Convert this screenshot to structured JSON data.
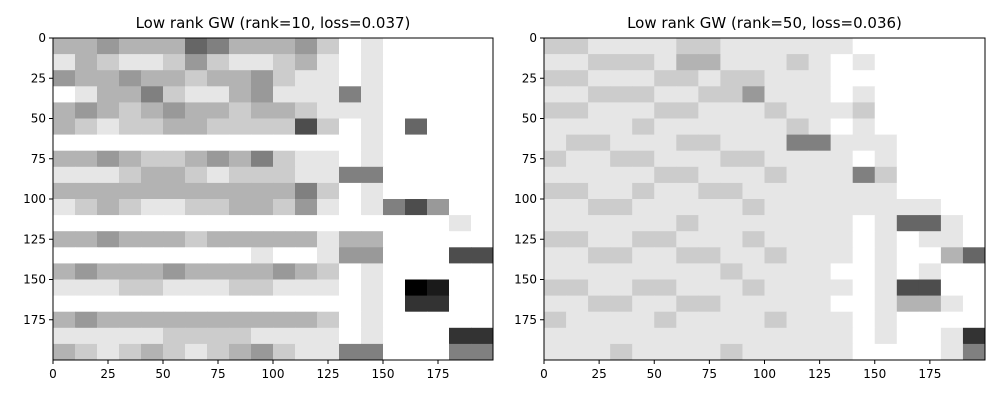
{
  "chart_data": [
    {
      "type": "heatmap",
      "title": "Low rank GW (rank=10, loss=0.037)",
      "xlim": [
        0,
        200
      ],
      "ylim": [
        200,
        0
      ],
      "xticks": [
        0,
        25,
        50,
        75,
        100,
        125,
        150,
        175
      ],
      "yticks": [
        0,
        25,
        50,
        75,
        100,
        125,
        150,
        175
      ],
      "color": "#000000",
      "values": [
        [
          0.3,
          0.3,
          0.4,
          0.3,
          0.3,
          0.3,
          0.6,
          0.5,
          0.3,
          0.3,
          0.3,
          0.4,
          0.2,
          0,
          0.1,
          0,
          0,
          0,
          0,
          0
        ],
        [
          0.1,
          0.3,
          0.2,
          0.1,
          0.1,
          0.2,
          0.4,
          0.2,
          0.1,
          0.1,
          0.2,
          0.3,
          0.1,
          0,
          0.1,
          0,
          0,
          0,
          0,
          0
        ],
        [
          0.4,
          0.3,
          0.3,
          0.4,
          0.3,
          0.3,
          0.2,
          0.3,
          0.3,
          0.4,
          0.2,
          0.1,
          0.1,
          0,
          0.1,
          0,
          0,
          0,
          0,
          0
        ],
        [
          0,
          0.1,
          0.3,
          0.3,
          0.5,
          0.2,
          0.1,
          0.1,
          0.3,
          0.4,
          0.1,
          0.1,
          0.1,
          0.5,
          0.1,
          0,
          0,
          0,
          0,
          0
        ],
        [
          0.3,
          0.4,
          0.3,
          0.2,
          0.3,
          0.4,
          0.3,
          0.3,
          0.2,
          0.3,
          0.3,
          0.2,
          0.1,
          0.1,
          0.1,
          0,
          0,
          0,
          0,
          0
        ],
        [
          0.3,
          0.2,
          0.1,
          0.2,
          0.2,
          0.3,
          0.3,
          0.2,
          0.2,
          0.2,
          0.2,
          0.7,
          0.2,
          0,
          0.1,
          0,
          0.6,
          0,
          0,
          0
        ],
        [
          0,
          0,
          0,
          0,
          0,
          0,
          0,
          0,
          0,
          0,
          0,
          0,
          0,
          0,
          0.1,
          0,
          0,
          0,
          0,
          0
        ],
        [
          0.3,
          0.3,
          0.4,
          0.3,
          0.2,
          0.2,
          0.3,
          0.4,
          0.3,
          0.5,
          0.2,
          0.1,
          0.1,
          0,
          0.1,
          0,
          0,
          0,
          0,
          0
        ],
        [
          0.1,
          0.1,
          0.1,
          0.2,
          0.3,
          0.3,
          0.2,
          0.1,
          0.2,
          0.2,
          0.2,
          0.1,
          0.1,
          0.5,
          0.5,
          0,
          0,
          0,
          0,
          0
        ],
        [
          0.3,
          0.3,
          0.3,
          0.3,
          0.3,
          0.3,
          0.3,
          0.3,
          0.3,
          0.3,
          0.3,
          0.5,
          0.2,
          0,
          0.1,
          0,
          0,
          0,
          0,
          0
        ],
        [
          0.1,
          0.2,
          0.3,
          0.2,
          0.1,
          0.1,
          0.2,
          0.2,
          0.3,
          0.3,
          0.2,
          0.4,
          0.1,
          0,
          0.1,
          0.5,
          0.7,
          0.4,
          0,
          0
        ],
        [
          0,
          0,
          0,
          0,
          0,
          0,
          0,
          0,
          0,
          0,
          0,
          0,
          0,
          0,
          0,
          0,
          0,
          0,
          0.1,
          0
        ],
        [
          0.3,
          0.3,
          0.4,
          0.3,
          0.3,
          0.3,
          0.2,
          0.3,
          0.3,
          0.3,
          0.3,
          0.3,
          0.1,
          0.3,
          0.3,
          0,
          0,
          0,
          0,
          0
        ],
        [
          0,
          0,
          0,
          0,
          0,
          0,
          0,
          0,
          0,
          0.1,
          0,
          0,
          0.1,
          0.4,
          0.4,
          0,
          0,
          0,
          0.7,
          0.7
        ],
        [
          0.3,
          0.4,
          0.3,
          0.3,
          0.3,
          0.4,
          0.3,
          0.3,
          0.3,
          0.3,
          0.4,
          0.3,
          0.2,
          0,
          0.1,
          0,
          0,
          0,
          0,
          0
        ],
        [
          0.1,
          0.1,
          0.1,
          0.2,
          0.2,
          0.1,
          0.1,
          0.1,
          0.2,
          0.2,
          0.1,
          0.1,
          0.1,
          0,
          0.1,
          0,
          1,
          0.9,
          0,
          0
        ],
        [
          0,
          0,
          0,
          0,
          0,
          0,
          0,
          0,
          0,
          0,
          0,
          0,
          0,
          0,
          0.1,
          0,
          0.8,
          0.8,
          0,
          0
        ],
        [
          0.3,
          0.4,
          0.3,
          0.3,
          0.3,
          0.3,
          0.3,
          0.3,
          0.3,
          0.3,
          0.3,
          0.3,
          0.2,
          0,
          0.1,
          0,
          0,
          0,
          0,
          0
        ],
        [
          0.1,
          0.1,
          0.1,
          0.1,
          0.1,
          0.2,
          0.2,
          0.2,
          0.2,
          0.1,
          0.1,
          0.1,
          0.1,
          0,
          0.1,
          0,
          0,
          0,
          0.8,
          0.8
        ],
        [
          0.3,
          0.2,
          0.1,
          0.2,
          0.3,
          0.2,
          0.1,
          0.2,
          0.3,
          0.4,
          0.2,
          0.1,
          0.1,
          0.5,
          0.5,
          0,
          0,
          0,
          0.5,
          0.5
        ]
      ]
    },
    {
      "type": "heatmap",
      "title": "Low rank GW (rank=50, loss=0.036)",
      "xlim": [
        0,
        200
      ],
      "ylim": [
        200,
        0
      ],
      "xticks": [
        0,
        25,
        50,
        75,
        100,
        125,
        150,
        175
      ],
      "yticks": [
        0,
        25,
        50,
        75,
        100,
        125,
        150,
        175
      ],
      "color": "#000000",
      "values": [
        [
          0.2,
          0.2,
          0.1,
          0.1,
          0.1,
          0.1,
          0.2,
          0.2,
          0.1,
          0.1,
          0.1,
          0.1,
          0.1,
          0.1,
          0,
          0,
          0,
          0,
          0,
          0
        ],
        [
          0.1,
          0.1,
          0.2,
          0.2,
          0.2,
          0.1,
          0.3,
          0.3,
          0.1,
          0.1,
          0.1,
          0.2,
          0.1,
          0,
          0.1,
          0,
          0,
          0,
          0,
          0
        ],
        [
          0.2,
          0.2,
          0.1,
          0.1,
          0.1,
          0.2,
          0.2,
          0.1,
          0.2,
          0.2,
          0.1,
          0.1,
          0.1,
          0,
          0,
          0,
          0,
          0,
          0,
          0
        ],
        [
          0.1,
          0.1,
          0.2,
          0.2,
          0.2,
          0.1,
          0.1,
          0.2,
          0.2,
          0.4,
          0.1,
          0.1,
          0.1,
          0,
          0.1,
          0,
          0,
          0,
          0,
          0
        ],
        [
          0.2,
          0.2,
          0.1,
          0.1,
          0.1,
          0.2,
          0.2,
          0.1,
          0.1,
          0.1,
          0.2,
          0.1,
          0.1,
          0.1,
          0.2,
          0,
          0,
          0,
          0,
          0
        ],
        [
          0.1,
          0.1,
          0.1,
          0.1,
          0.2,
          0.1,
          0.1,
          0.1,
          0.1,
          0.1,
          0.1,
          0.2,
          0.1,
          0,
          0.1,
          0,
          0,
          0,
          0,
          0
        ],
        [
          0.1,
          0.2,
          0.2,
          0.1,
          0.1,
          0.1,
          0.2,
          0.2,
          0.1,
          0.1,
          0.1,
          0.5,
          0.5,
          0.1,
          0.1,
          0.1,
          0,
          0,
          0,
          0
        ],
        [
          0.2,
          0.1,
          0.1,
          0.2,
          0.2,
          0.1,
          0.1,
          0.1,
          0.2,
          0.2,
          0.1,
          0.1,
          0.1,
          0.1,
          0,
          0.1,
          0,
          0,
          0,
          0
        ],
        [
          0.1,
          0.1,
          0.1,
          0.1,
          0.1,
          0.2,
          0.2,
          0.1,
          0.1,
          0.1,
          0.2,
          0.1,
          0.1,
          0.1,
          0.5,
          0.2,
          0,
          0,
          0,
          0
        ],
        [
          0.2,
          0.2,
          0.1,
          0.1,
          0.2,
          0.1,
          0.1,
          0.2,
          0.2,
          0.1,
          0.1,
          0.1,
          0.1,
          0.1,
          0.1,
          0.1,
          0,
          0,
          0,
          0
        ],
        [
          0.1,
          0.1,
          0.2,
          0.2,
          0.1,
          0.1,
          0.1,
          0.1,
          0.1,
          0.2,
          0.1,
          0.1,
          0.1,
          0.1,
          0.1,
          0.1,
          0.1,
          0.1,
          0,
          0
        ],
        [
          0.1,
          0.1,
          0.1,
          0.1,
          0.1,
          0.1,
          0.2,
          0.1,
          0.1,
          0.1,
          0.1,
          0.1,
          0.1,
          0.1,
          0,
          0.1,
          0.6,
          0.6,
          0.1,
          0
        ],
        [
          0.2,
          0.2,
          0.1,
          0.1,
          0.2,
          0.2,
          0.1,
          0.1,
          0.1,
          0.2,
          0.1,
          0.1,
          0.1,
          0.1,
          0,
          0.1,
          0,
          0.1,
          0.1,
          0
        ],
        [
          0.1,
          0.1,
          0.2,
          0.2,
          0.1,
          0.1,
          0.2,
          0.2,
          0.1,
          0.1,
          0.2,
          0.1,
          0.1,
          0.1,
          0,
          0.1,
          0,
          0,
          0.3,
          0.6
        ],
        [
          0.1,
          0.1,
          0.1,
          0.1,
          0.1,
          0.1,
          0.1,
          0.1,
          0.2,
          0.1,
          0.1,
          0.1,
          0.1,
          0,
          0,
          0.1,
          0,
          0.1,
          0,
          0
        ],
        [
          0.2,
          0.2,
          0.1,
          0.1,
          0.2,
          0.2,
          0.1,
          0.1,
          0.1,
          0.2,
          0.1,
          0.1,
          0.1,
          0.1,
          0,
          0.1,
          0.7,
          0.7,
          0,
          0
        ],
        [
          0.1,
          0.1,
          0.2,
          0.2,
          0.1,
          0.1,
          0.2,
          0.2,
          0.1,
          0.1,
          0.1,
          0.1,
          0.1,
          0,
          0,
          0.1,
          0.3,
          0.3,
          0.1,
          0
        ],
        [
          0.2,
          0.1,
          0.1,
          0.1,
          0.1,
          0.2,
          0.1,
          0.1,
          0.1,
          0.1,
          0.2,
          0.1,
          0.1,
          0.1,
          0,
          0.1,
          0,
          0,
          0,
          0
        ],
        [
          0.1,
          0.1,
          0.1,
          0.1,
          0.1,
          0.1,
          0.1,
          0.1,
          0.1,
          0.1,
          0.1,
          0.1,
          0.1,
          0.1,
          0,
          0.1,
          0,
          0,
          0.1,
          0.8
        ],
        [
          0.1,
          0.1,
          0.1,
          0.2,
          0.1,
          0.1,
          0.1,
          0.1,
          0.2,
          0.1,
          0.1,
          0.1,
          0.1,
          0.1,
          0,
          0,
          0,
          0,
          0.1,
          0.5
        ]
      ]
    }
  ]
}
